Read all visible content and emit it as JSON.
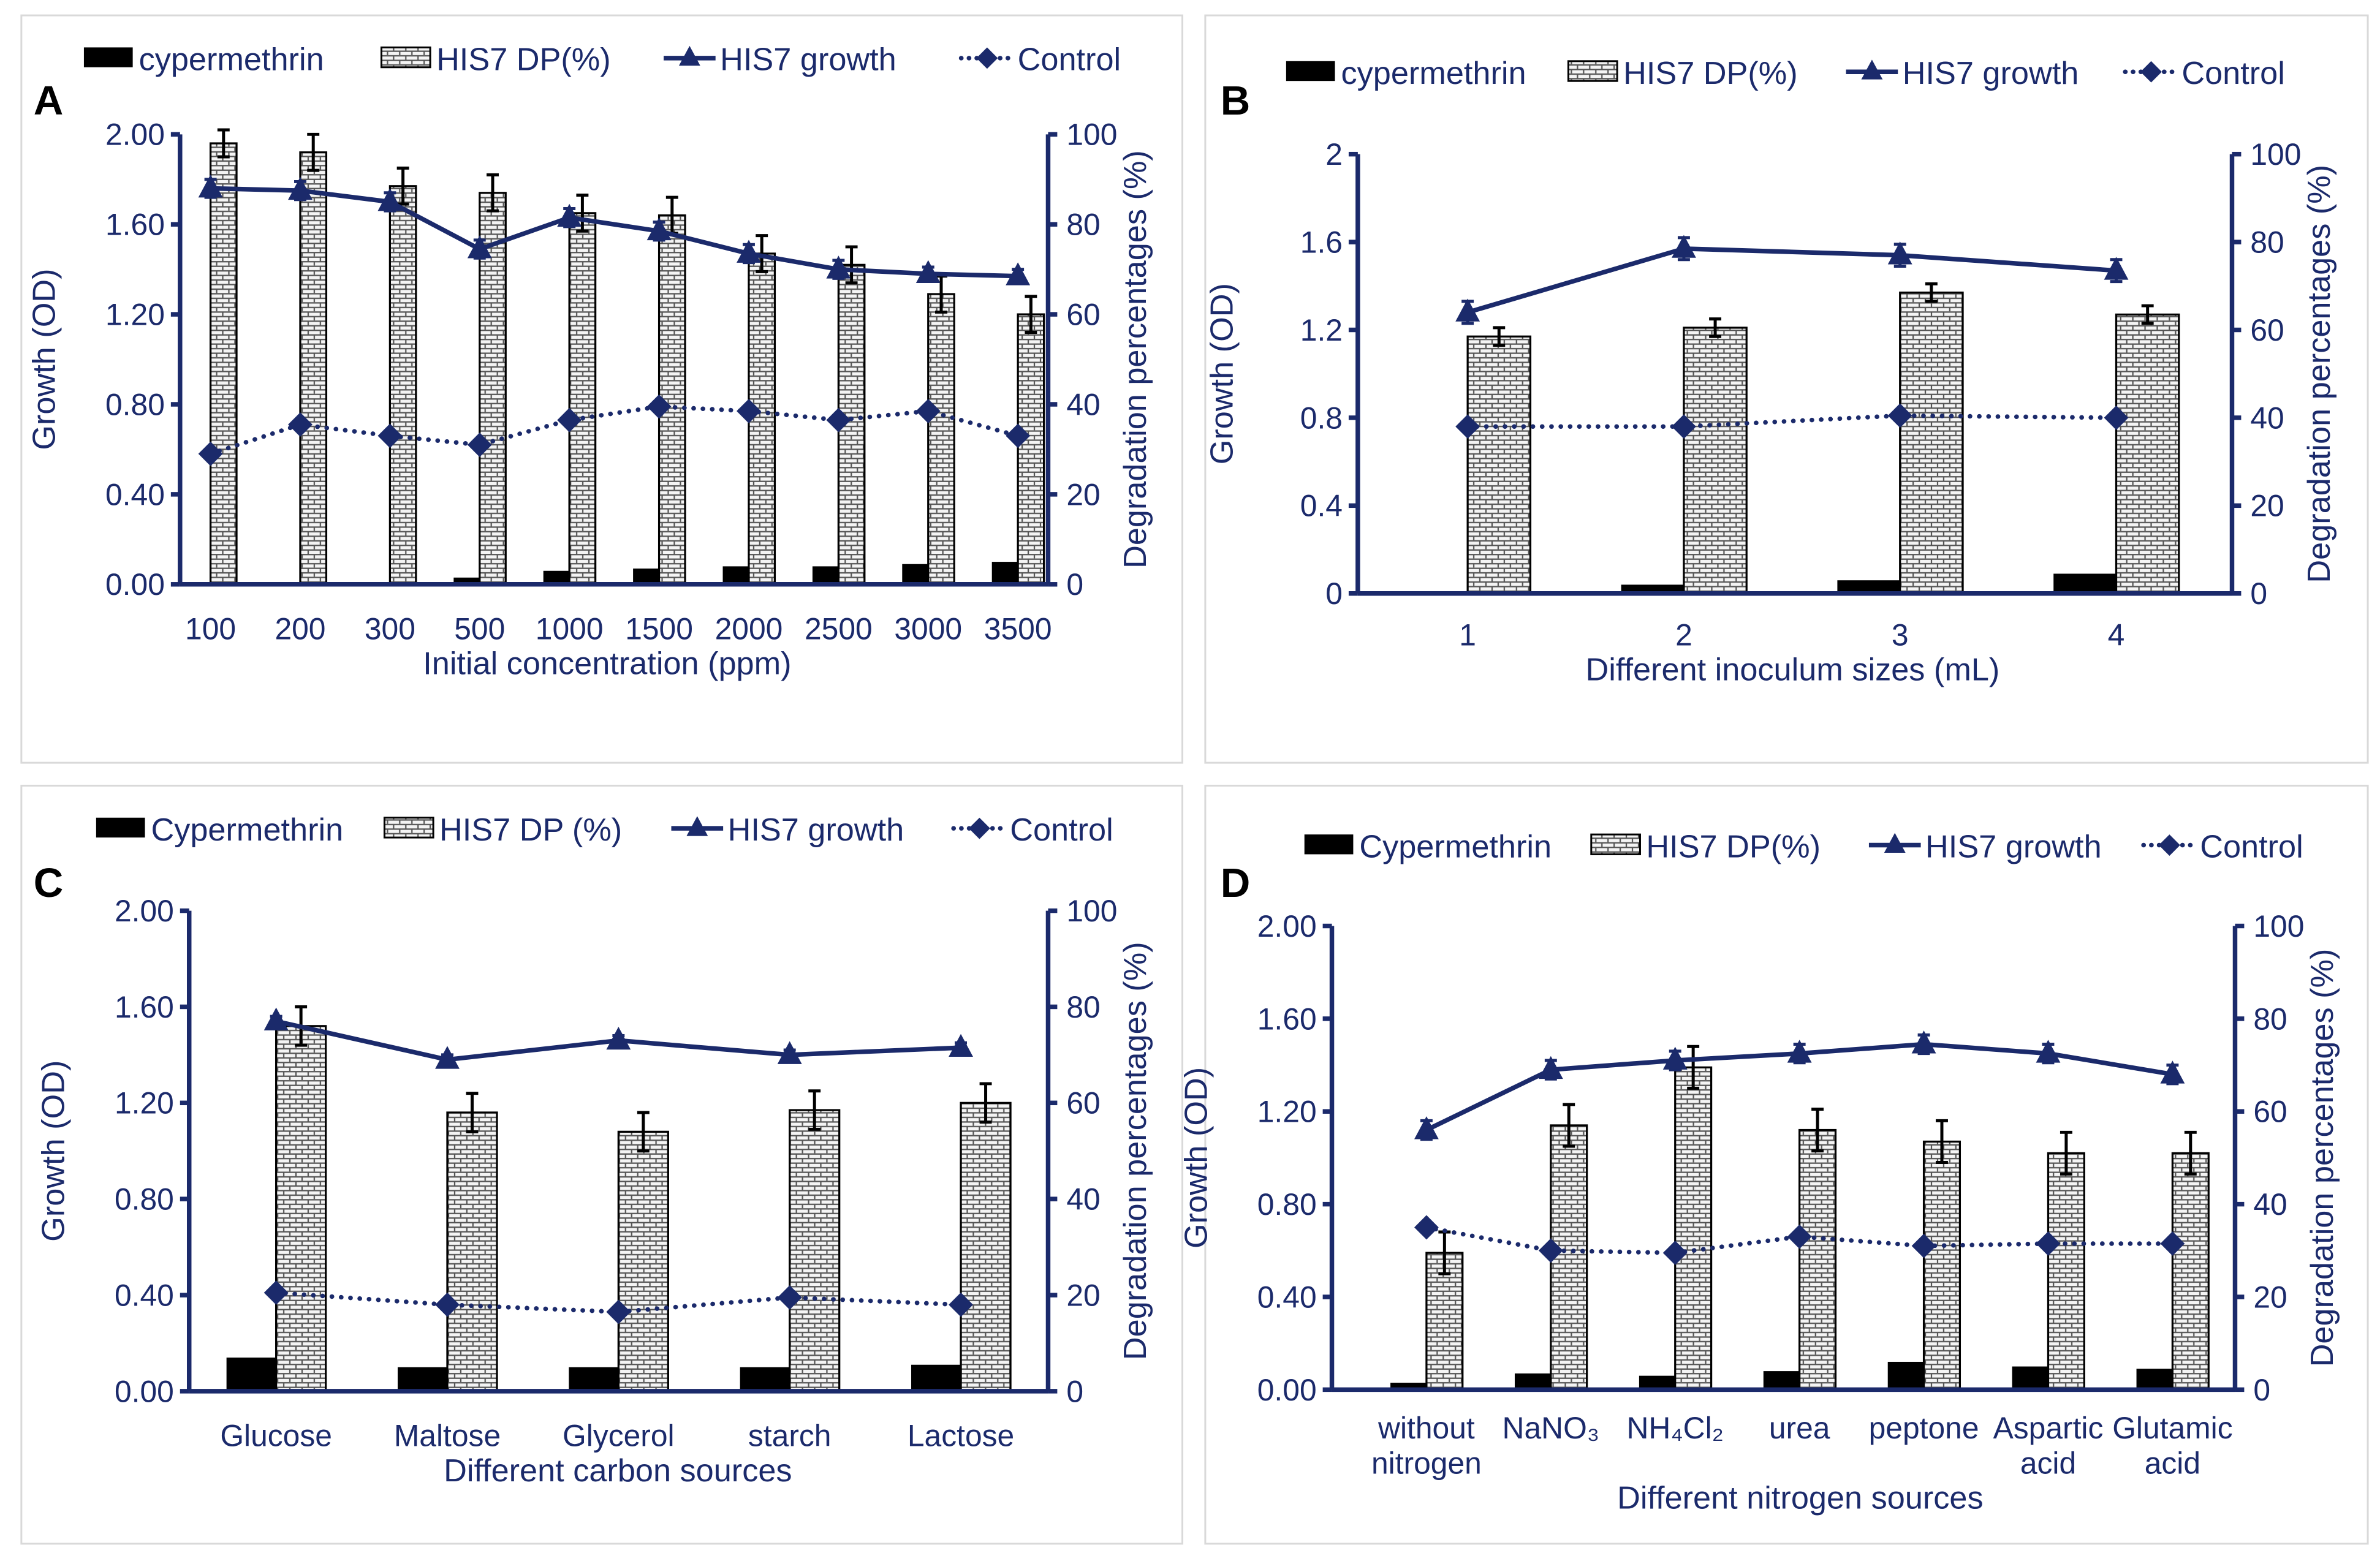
{
  "colors": {
    "navy": "#1b2a6b",
    "cyp": "#000000",
    "frame": "#d9d9d9"
  },
  "chart_data": [
    {
      "type": "bar",
      "panel": "A",
      "legend": [
        "cypermethrin",
        "HIS7  DP(%)",
        "HIS7  growth",
        "Control"
      ],
      "xlabel": "Initial concentration  (ppm)",
      "ylabel": "Growth (OD)",
      "y2label": "Degradation percentages (%)",
      "ylim": [
        0,
        2
      ],
      "y2lim": [
        0,
        100
      ],
      "yticks": [
        "0.00",
        "0.40",
        "0.80",
        "1.20",
        "1.60",
        "2.00"
      ],
      "y2ticks": [
        "0",
        "20",
        "40",
        "60",
        "80",
        "100"
      ],
      "categories": [
        [
          "100"
        ],
        [
          "200"
        ],
        [
          "300"
        ],
        [
          "500"
        ],
        [
          "1000"
        ],
        [
          "1500"
        ],
        [
          "2000"
        ],
        [
          "2500"
        ],
        [
          "3000"
        ],
        [
          "3500"
        ]
      ],
      "cypermethrin_OD": [
        0.01,
        0.01,
        0.01,
        0.03,
        0.06,
        0.07,
        0.08,
        0.08,
        0.09,
        0.1
      ],
      "dp_percent": [
        98,
        96,
        88.5,
        87,
        82.5,
        82,
        73.5,
        71,
        64.5,
        60
      ],
      "dp_err": [
        3,
        4,
        4,
        4,
        4,
        4,
        4,
        4,
        4,
        4
      ],
      "growth_OD": [
        1.76,
        1.75,
        1.7,
        1.49,
        1.63,
        1.57,
        1.47,
        1.4,
        1.38,
        1.37
      ],
      "growth_err": [
        0.04,
        0.04,
        0.04,
        0.04,
        0.04,
        0.04,
        0.04,
        0.04,
        0.03,
        0.03
      ],
      "control_OD": [
        0.58,
        0.71,
        0.66,
        0.62,
        0.73,
        0.79,
        0.77,
        0.73,
        0.77,
        0.66
      ]
    },
    {
      "type": "bar",
      "panel": "B",
      "legend": [
        "cypermethrin",
        "HIS7  DP(%)",
        "HIS7  growth",
        "Control"
      ],
      "xlabel": "Different inoculum sizes (mL)",
      "ylabel": "Growth (OD)",
      "y2label": "Degradation percentages (%)",
      "ylim": [
        0,
        2
      ],
      "y2lim": [
        0,
        100
      ],
      "yticks": [
        "0",
        "0.4",
        "0.8",
        "1.2",
        "1.6",
        "2"
      ],
      "y2ticks": [
        "0",
        "20",
        "40",
        "60",
        "80",
        "100"
      ],
      "categories": [
        [
          "1"
        ],
        [
          "2"
        ],
        [
          "3"
        ],
        [
          "4"
        ]
      ],
      "cypermethrin_OD": [
        0.01,
        0.04,
        0.06,
        0.09
      ],
      "dp_percent": [
        58.5,
        60.5,
        68.5,
        63.5
      ],
      "dp_err": [
        2,
        2,
        2,
        2
      ],
      "growth_OD": [
        1.28,
        1.57,
        1.54,
        1.47
      ],
      "growth_err": [
        0.05,
        0.05,
        0.05,
        0.05
      ],
      "control_OD": [
        0.76,
        0.76,
        0.81,
        0.8
      ]
    },
    {
      "type": "bar",
      "panel": "C",
      "legend": [
        "Cypermethrin",
        "HIS7  DP (%)",
        "HIS7  growth",
        "Control"
      ],
      "xlabel": "Different carbon sources",
      "ylabel": "Growth (OD)",
      "y2label": "Degradation percentages (%)",
      "ylim": [
        0,
        2
      ],
      "y2lim": [
        0,
        100
      ],
      "yticks": [
        "0.00",
        "0.40",
        "0.80",
        "1.20",
        "1.60",
        "2.00"
      ],
      "y2ticks": [
        "0",
        "20",
        "40",
        "60",
        "80",
        "100"
      ],
      "categories": [
        [
          "Glucose"
        ],
        [
          "Maltose"
        ],
        [
          "Glycerol"
        ],
        [
          "starch"
        ],
        [
          "Lactose"
        ]
      ],
      "cypermethrin_OD": [
        0.14,
        0.1,
        0.1,
        0.1,
        0.11
      ],
      "dp_percent": [
        76,
        58,
        54,
        58.5,
        60
      ],
      "dp_err": [
        4,
        4,
        4,
        4,
        4
      ],
      "growth_OD": [
        1.54,
        1.38,
        1.46,
        1.4,
        1.43
      ],
      "growth_err": [
        0.02,
        0.02,
        0.02,
        0.02,
        0.02
      ],
      "control_OD": [
        0.41,
        0.36,
        0.33,
        0.39,
        0.36
      ]
    },
    {
      "type": "bar",
      "panel": "D",
      "legend": [
        "Cypermethrin",
        "HIS7 DP(%)",
        "HIS7 growth",
        "Control"
      ],
      "xlabel": "Different nitrogen sources",
      "ylabel": "Growth (OD)",
      "y2label": "Degradation percentages (%)",
      "ylim": [
        0,
        2
      ],
      "y2lim": [
        0,
        100
      ],
      "yticks": [
        "0.00",
        "0.40",
        "0.80",
        "1.20",
        "1.60",
        "2.00"
      ],
      "y2ticks": [
        "0",
        "20",
        "40",
        "60",
        "80",
        "100"
      ],
      "categories": [
        [
          "without",
          "nitrogen"
        ],
        [
          "NaNO₃"
        ],
        [
          "NH₄Cl₂"
        ],
        [
          "urea"
        ],
        [
          "peptone"
        ],
        [
          "Aspartic",
          "acid"
        ],
        [
          "Glutamic",
          "acid"
        ]
      ],
      "cypermethrin_OD": [
        0.03,
        0.07,
        0.06,
        0.08,
        0.12,
        0.1,
        0.09
      ],
      "dp_percent": [
        29.5,
        57,
        69.5,
        56,
        53.5,
        51,
        51
      ],
      "dp_err": [
        4.5,
        4.5,
        4.5,
        4.5,
        4.5,
        4.5,
        4.5
      ],
      "growth_OD": [
        1.12,
        1.38,
        1.42,
        1.45,
        1.49,
        1.45,
        1.36
      ],
      "growth_err": [
        0.04,
        0.04,
        0.04,
        0.04,
        0.04,
        0.04,
        0.04
      ],
      "control_OD": [
        0.7,
        0.6,
        0.59,
        0.66,
        0.62,
        0.63,
        0.63
      ]
    }
  ]
}
